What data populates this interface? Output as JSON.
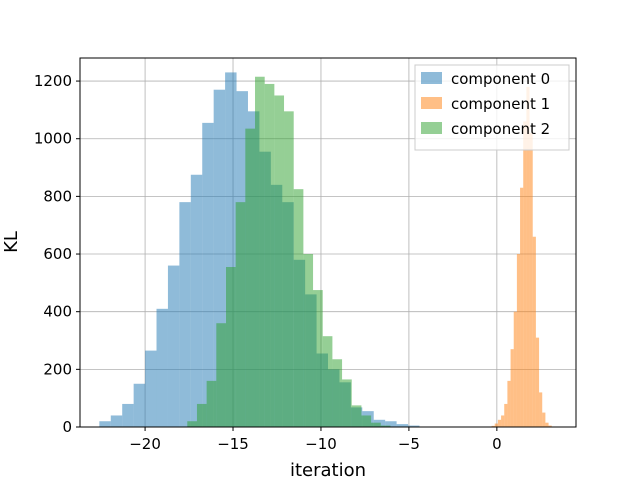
{
  "chart_data": {
    "type": "histogram",
    "xlabel": "iteration",
    "ylabel": "KL",
    "xlim": [
      -23.7,
      4.5
    ],
    "ylim": [
      0,
      1280
    ],
    "xticks": [
      -20,
      -15,
      -10,
      -5,
      0
    ],
    "yticks": [
      0,
      200,
      400,
      600,
      800,
      1000,
      1200
    ],
    "grid": true,
    "legend_position": "top-right",
    "series": [
      {
        "name": "component 0",
        "color": "#1f77b4",
        "bins": [
          [
            -22.6,
            -21.95,
            20
          ],
          [
            -21.95,
            -21.3,
            40
          ],
          [
            -21.3,
            -20.65,
            80
          ],
          [
            -20.65,
            -20.0,
            150
          ],
          [
            -20.0,
            -19.35,
            265
          ],
          [
            -19.35,
            -18.7,
            410
          ],
          [
            -18.7,
            -18.05,
            560
          ],
          [
            -18.05,
            -17.4,
            780
          ],
          [
            -17.4,
            -16.75,
            875
          ],
          [
            -16.75,
            -16.1,
            1055
          ],
          [
            -16.1,
            -15.45,
            1170
          ],
          [
            -15.45,
            -14.8,
            1230
          ],
          [
            -14.8,
            -14.15,
            1165
          ],
          [
            -14.15,
            -13.5,
            1095
          ],
          [
            -13.5,
            -12.85,
            955
          ],
          [
            -12.85,
            -12.2,
            840
          ],
          [
            -12.2,
            -11.55,
            780
          ],
          [
            -11.55,
            -10.9,
            580
          ],
          [
            -10.9,
            -10.25,
            460
          ],
          [
            -10.25,
            -9.6,
            255
          ],
          [
            -9.6,
            -8.95,
            200
          ],
          [
            -8.95,
            -8.3,
            155
          ],
          [
            -8.3,
            -7.65,
            68
          ],
          [
            -7.65,
            -7.0,
            55
          ],
          [
            -7.0,
            -6.35,
            25
          ],
          [
            -6.35,
            -5.7,
            20
          ],
          [
            -5.7,
            -5.05,
            10
          ],
          [
            -5.05,
            -4.4,
            5
          ]
        ]
      },
      {
        "name": "component 1",
        "color": "#ff7f0e",
        "bins": [
          [
            -0.3,
            -0.12,
            4
          ],
          [
            -0.12,
            0.06,
            12
          ],
          [
            0.06,
            0.24,
            25
          ],
          [
            0.24,
            0.42,
            40
          ],
          [
            0.42,
            0.6,
            80
          ],
          [
            0.6,
            0.78,
            160
          ],
          [
            0.78,
            0.96,
            270
          ],
          [
            0.96,
            1.14,
            400
          ],
          [
            1.14,
            1.32,
            600
          ],
          [
            1.32,
            1.5,
            830
          ],
          [
            1.5,
            1.68,
            1060
          ],
          [
            1.68,
            1.86,
            1180
          ],
          [
            1.86,
            2.04,
            1020
          ],
          [
            2.04,
            2.22,
            660
          ],
          [
            2.22,
            2.4,
            310
          ],
          [
            2.4,
            2.58,
            120
          ],
          [
            2.58,
            2.76,
            50
          ],
          [
            2.76,
            2.94,
            15
          ],
          [
            2.94,
            3.12,
            5
          ]
        ]
      },
      {
        "name": "component 2",
        "color": "#2ca02c",
        "bins": [
          [
            -17.6,
            -17.05,
            20
          ],
          [
            -17.05,
            -16.5,
            80
          ],
          [
            -16.5,
            -15.95,
            160
          ],
          [
            -15.95,
            -15.4,
            360
          ],
          [
            -15.4,
            -14.85,
            555
          ],
          [
            -14.85,
            -14.3,
            780
          ],
          [
            -14.3,
            -13.75,
            1035
          ],
          [
            -13.75,
            -13.2,
            1215
          ],
          [
            -13.2,
            -12.65,
            1190
          ],
          [
            -12.65,
            -12.1,
            1150
          ],
          [
            -12.1,
            -11.55,
            1095
          ],
          [
            -11.55,
            -11.0,
            825
          ],
          [
            -11.0,
            -10.45,
            600
          ],
          [
            -10.45,
            -9.9,
            475
          ],
          [
            -9.9,
            -9.35,
            315
          ],
          [
            -9.35,
            -8.8,
            235
          ],
          [
            -8.8,
            -8.25,
            165
          ],
          [
            -8.25,
            -7.7,
            75
          ],
          [
            -7.7,
            -7.15,
            40
          ],
          [
            -7.15,
            -6.6,
            15
          ],
          [
            -6.6,
            -6.05,
            5
          ]
        ]
      }
    ]
  }
}
